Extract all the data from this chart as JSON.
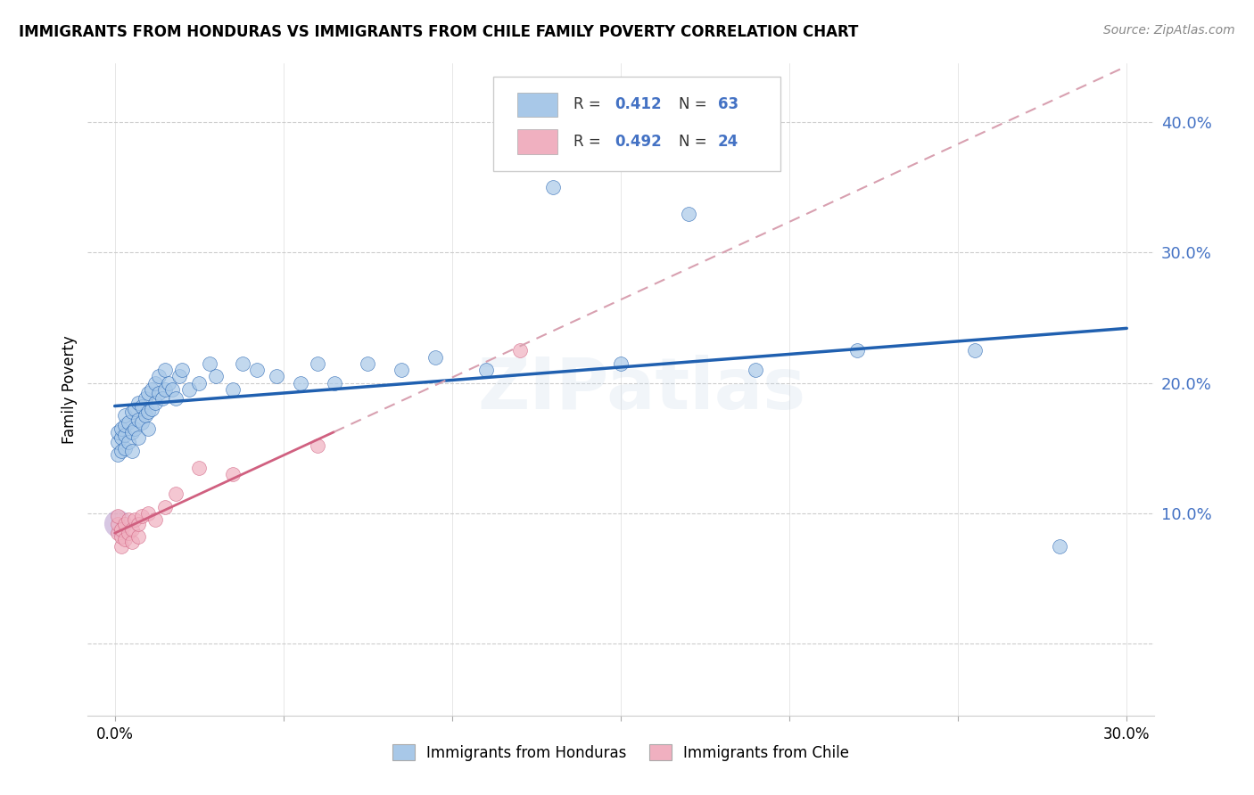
{
  "title": "IMMIGRANTS FROM HONDURAS VS IMMIGRANTS FROM CHILE FAMILY POVERTY CORRELATION CHART",
  "source": "Source: ZipAtlas.com",
  "ylabel": "Family Poverty",
  "ytick_vals": [
    0.0,
    0.1,
    0.2,
    0.3,
    0.4
  ],
  "ytick_labels": [
    "",
    "10.0%",
    "20.0%",
    "30.0%",
    "40.0%"
  ],
  "xtick_vals": [
    0.0,
    0.05,
    0.1,
    0.15,
    0.2,
    0.25,
    0.3
  ],
  "xlim": [
    -0.008,
    0.308
  ],
  "ylim": [
    -0.055,
    0.445
  ],
  "legend_label1": "Immigrants from Honduras",
  "legend_label2": "Immigrants from Chile",
  "color_honduras": "#a8c8e8",
  "color_chile": "#f0b0c0",
  "color_line_honduras": "#2060b0",
  "color_line_chile": "#d06080",
  "color_line_chile_dashed": "#d8a0b0",
  "watermark": "ZIPatlas",
  "r1": "0.412",
  "n1": "63",
  "r2": "0.492",
  "n2": "24",
  "honduras_x": [
    0.001,
    0.001,
    0.001,
    0.002,
    0.002,
    0.002,
    0.003,
    0.003,
    0.003,
    0.003,
    0.004,
    0.004,
    0.005,
    0.005,
    0.005,
    0.006,
    0.006,
    0.007,
    0.007,
    0.007,
    0.008,
    0.008,
    0.009,
    0.009,
    0.01,
    0.01,
    0.01,
    0.011,
    0.011,
    0.012,
    0.012,
    0.013,
    0.013,
    0.014,
    0.015,
    0.015,
    0.016,
    0.017,
    0.018,
    0.019,
    0.02,
    0.022,
    0.025,
    0.028,
    0.03,
    0.035,
    0.038,
    0.042,
    0.048,
    0.055,
    0.06,
    0.065,
    0.075,
    0.085,
    0.095,
    0.11,
    0.13,
    0.15,
    0.17,
    0.19,
    0.22,
    0.255,
    0.28
  ],
  "honduras_y": [
    0.145,
    0.155,
    0.162,
    0.148,
    0.158,
    0.165,
    0.15,
    0.16,
    0.168,
    0.175,
    0.155,
    0.17,
    0.148,
    0.162,
    0.178,
    0.165,
    0.18,
    0.158,
    0.172,
    0.185,
    0.17,
    0.182,
    0.175,
    0.188,
    0.165,
    0.178,
    0.192,
    0.18,
    0.195,
    0.185,
    0.2,
    0.192,
    0.205,
    0.188,
    0.195,
    0.21,
    0.2,
    0.195,
    0.188,
    0.205,
    0.21,
    0.195,
    0.2,
    0.215,
    0.205,
    0.195,
    0.215,
    0.21,
    0.205,
    0.2,
    0.215,
    0.2,
    0.215,
    0.21,
    0.22,
    0.21,
    0.35,
    0.215,
    0.33,
    0.21,
    0.225,
    0.225,
    0.075
  ],
  "chile_x": [
    0.001,
    0.001,
    0.001,
    0.002,
    0.002,
    0.002,
    0.003,
    0.003,
    0.004,
    0.004,
    0.005,
    0.005,
    0.006,
    0.007,
    0.007,
    0.008,
    0.01,
    0.012,
    0.015,
    0.018,
    0.025,
    0.035,
    0.06,
    0.12
  ],
  "chile_y": [
    0.085,
    0.092,
    0.098,
    0.075,
    0.082,
    0.088,
    0.08,
    0.092,
    0.085,
    0.095,
    0.078,
    0.088,
    0.095,
    0.082,
    0.092,
    0.098,
    0.1,
    0.095,
    0.105,
    0.115,
    0.135,
    0.13,
    0.152,
    0.225
  ]
}
